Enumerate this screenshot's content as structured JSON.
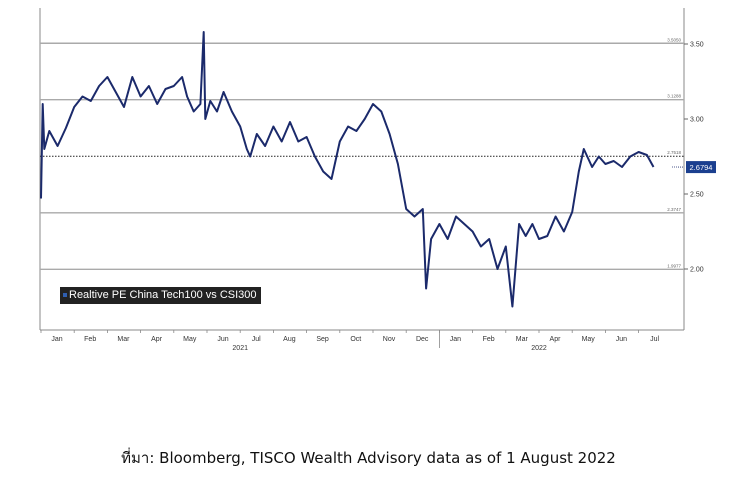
{
  "chart_data": {
    "type": "line",
    "title": "",
    "ylim": [
      1.55,
      3.8
    ],
    "y_ticks": [
      "3.50",
      "3.00",
      "2.50",
      "2.00"
    ],
    "reference_lines": [
      {
        "label": "3.5050",
        "value": 3.505,
        "style": "solid"
      },
      {
        "label": "3.1288",
        "value": 3.1288,
        "style": "solid"
      },
      {
        "label": "2.7518",
        "value": 2.7518,
        "style": "dotted"
      },
      {
        "label": "2.3747",
        "value": 2.3747,
        "style": "solid"
      },
      {
        "label": "1.9977",
        "value": 1.9977,
        "style": "solid"
      }
    ],
    "last_value_label": "2.6794",
    "x_months": [
      "Jan",
      "Feb",
      "Mar",
      "Apr",
      "May",
      "Jun",
      "Jul",
      "Aug",
      "Sep",
      "Oct",
      "Nov",
      "Dec",
      "Jan",
      "Feb",
      "Mar",
      "Apr",
      "May",
      "Jun",
      "Jul"
    ],
    "x_years": [
      {
        "label": "2021",
        "month_index": 6
      },
      {
        "label": "2022",
        "month_index": 15
      }
    ],
    "series": [
      {
        "name": "Realtive PE China Tech100 vs CSI300",
        "color": "#1b2a6b",
        "points": [
          [
            0.0,
            2.47
          ],
          [
            0.05,
            3.1
          ],
          [
            0.1,
            2.8
          ],
          [
            0.25,
            2.92
          ],
          [
            0.5,
            2.82
          ],
          [
            0.75,
            2.94
          ],
          [
            1.0,
            3.08
          ],
          [
            1.25,
            3.15
          ],
          [
            1.5,
            3.12
          ],
          [
            1.75,
            3.22
          ],
          [
            2.0,
            3.28
          ],
          [
            2.25,
            3.18
          ],
          [
            2.5,
            3.08
          ],
          [
            2.75,
            3.28
          ],
          [
            3.0,
            3.15
          ],
          [
            3.25,
            3.22
          ],
          [
            3.5,
            3.1
          ],
          [
            3.75,
            3.2
          ],
          [
            4.0,
            3.22
          ],
          [
            4.25,
            3.28
          ],
          [
            4.4,
            3.15
          ],
          [
            4.6,
            3.05
          ],
          [
            4.8,
            3.1
          ],
          [
            4.9,
            3.58
          ],
          [
            4.95,
            3.0
          ],
          [
            5.1,
            3.12
          ],
          [
            5.3,
            3.05
          ],
          [
            5.5,
            3.18
          ],
          [
            5.75,
            3.05
          ],
          [
            6.0,
            2.95
          ],
          [
            6.2,
            2.8
          ],
          [
            6.3,
            2.75
          ],
          [
            6.5,
            2.9
          ],
          [
            6.75,
            2.82
          ],
          [
            7.0,
            2.95
          ],
          [
            7.25,
            2.85
          ],
          [
            7.5,
            2.98
          ],
          [
            7.75,
            2.85
          ],
          [
            8.0,
            2.88
          ],
          [
            8.25,
            2.75
          ],
          [
            8.5,
            2.65
          ],
          [
            8.75,
            2.6
          ],
          [
            9.0,
            2.85
          ],
          [
            9.25,
            2.95
          ],
          [
            9.5,
            2.92
          ],
          [
            9.75,
            3.0
          ],
          [
            10.0,
            3.1
          ],
          [
            10.25,
            3.05
          ],
          [
            10.5,
            2.9
          ],
          [
            10.75,
            2.7
          ],
          [
            11.0,
            2.4
          ],
          [
            11.25,
            2.35
          ],
          [
            11.5,
            2.4
          ],
          [
            11.6,
            1.87
          ],
          [
            11.75,
            2.2
          ],
          [
            12.0,
            2.3
          ],
          [
            12.25,
            2.2
          ],
          [
            12.5,
            2.35
          ],
          [
            12.75,
            2.3
          ],
          [
            13.0,
            2.25
          ],
          [
            13.25,
            2.15
          ],
          [
            13.5,
            2.2
          ],
          [
            13.75,
            2.0
          ],
          [
            14.0,
            2.15
          ],
          [
            14.2,
            1.75
          ],
          [
            14.4,
            2.3
          ],
          [
            14.6,
            2.22
          ],
          [
            14.8,
            2.3
          ],
          [
            15.0,
            2.2
          ],
          [
            15.25,
            2.22
          ],
          [
            15.5,
            2.35
          ],
          [
            15.75,
            2.25
          ],
          [
            16.0,
            2.38
          ],
          [
            16.2,
            2.65
          ],
          [
            16.35,
            2.8
          ],
          [
            16.6,
            2.68
          ],
          [
            16.8,
            2.75
          ],
          [
            17.0,
            2.7
          ],
          [
            17.25,
            2.72
          ],
          [
            17.5,
            2.68
          ],
          [
            17.75,
            2.75
          ],
          [
            18.0,
            2.78
          ],
          [
            18.25,
            2.76
          ],
          [
            18.45,
            2.68
          ]
        ]
      }
    ]
  },
  "legend": {
    "label": "Realtive PE China Tech100 vs CSI300"
  },
  "source": "ที่มา: Bloomberg, TISCO Wealth Advisory data as of 1 August 2022"
}
